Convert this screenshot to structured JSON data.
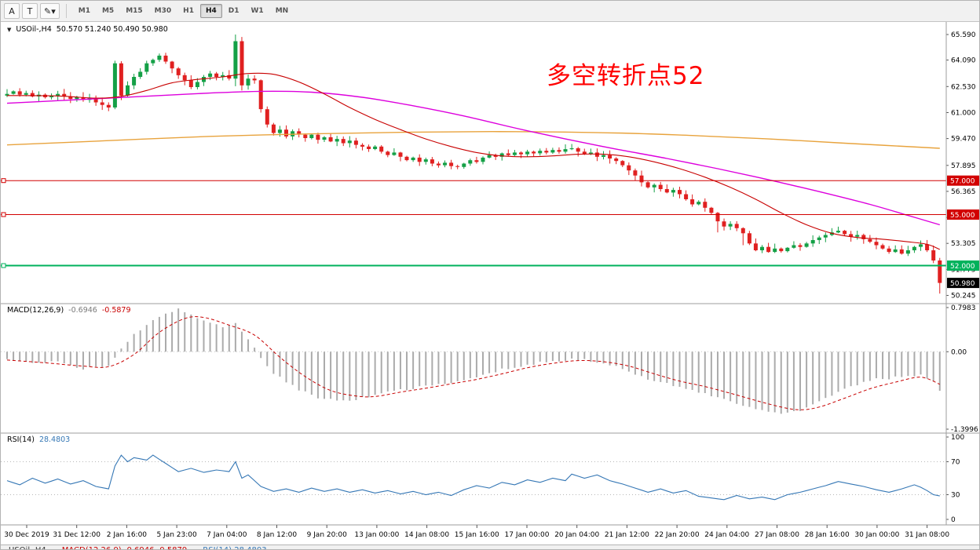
{
  "toolbar": {
    "tools": [
      {
        "name": "cursor-tool",
        "label": "A"
      },
      {
        "name": "text-tool",
        "label": "T"
      },
      {
        "name": "draw-tool",
        "label": "✎▾"
      }
    ],
    "timeframes": [
      "M1",
      "M5",
      "M15",
      "M30",
      "H1",
      "H4",
      "D1",
      "W1",
      "MN"
    ],
    "active_timeframe": "H4"
  },
  "chart": {
    "symbol": "USOil-,H4",
    "ohlc_text": "50.570 51.240 50.490 50.980",
    "collapse_icon": "▼",
    "annotation": "多空转折点52",
    "annotation_color": "#ff0000",
    "price_ticks": [
      65.59,
      64.09,
      62.53,
      61.0,
      59.47,
      57.895,
      56.365,
      54.835,
      53.305,
      51.775,
      50.245
    ],
    "hlines": [
      {
        "price": 57.0,
        "label": "57.000",
        "color": "#d20000",
        "width": 1
      },
      {
        "price": 55.0,
        "label": "55.000",
        "color": "#d20000",
        "width": 1
      },
      {
        "price": 52.0,
        "label": "52.000",
        "color": "#00b25c",
        "width": 2
      }
    ],
    "current_price": {
      "value": 50.98,
      "label": "50.980"
    },
    "time_labels": [
      "30 Dec 2019",
      "31 Dec 12:00",
      "2 Jan 16:00",
      "5 Jan 23:00",
      "7 Jan 04:00",
      "8 Jan 12:00",
      "9 Jan 20:00",
      "13 Jan 00:00",
      "14 Jan 08:00",
      "15 Jan 16:00",
      "17 Jan 00:00",
      "20 Jan 04:00",
      "21 Jan 12:00",
      "22 Jan 20:00",
      "24 Jan 04:00",
      "27 Jan 08:00",
      "28 Jan 16:00",
      "30 Jan 00:00",
      "31 Jan 08:00"
    ],
    "colors": {
      "candle_up": "#14a046",
      "candle_down": "#e02020",
      "ma_red": "#c80000",
      "ma_magenta": "#dd00dd",
      "ma_orange": "#e8a33d",
      "macd_hist": "#ababab",
      "macd_signal": "#c80000",
      "rsi": "#3577b5",
      "hline_red": "#d20000",
      "hline_green": "#00b25c"
    }
  },
  "macd": {
    "name": "MACD(12,26,9)",
    "main_value": "-0.6946",
    "signal_value": "-0.5879",
    "axis": [
      {
        "value": 0.7983,
        "label": "0.7983"
      },
      {
        "value": 0,
        "label": "0.00"
      },
      {
        "value": -1.3996,
        "label": "-1.3996"
      }
    ]
  },
  "rsi": {
    "name": "RSI(14)",
    "value": "28.4803",
    "levels": [
      70,
      30
    ],
    "axis": [
      {
        "value": 100,
        "label": "100"
      },
      {
        "value": 70,
        "label": "70"
      },
      {
        "value": 30,
        "label": "30"
      },
      {
        "value": 0,
        "label": "0"
      }
    ]
  },
  "bottom_bar": {
    "segments": [
      {
        "text": "USOil-,H4",
        "color": "#333333"
      },
      {
        "text": "MACD(12,26,9) -0.6946 -0.5879",
        "color": "#c80000"
      },
      {
        "text": "RSI(14) 28.4803",
        "color": "#3577b5"
      }
    ]
  },
  "chart_data": {
    "type": "candlestick",
    "symbol": "USOil",
    "timeframe": "H4",
    "price_axis_range": [
      49.9,
      66.1
    ],
    "macd_axis_range": [
      -1.3996,
      0.7983
    ],
    "rsi_axis_range": [
      0,
      100
    ],
    "first_open": 62.0,
    "closes": [
      62.1,
      62.25,
      62.05,
      62.15,
      61.95,
      62.05,
      61.9,
      62.0,
      62.1,
      61.95,
      61.8,
      61.9,
      61.75,
      61.85,
      61.6,
      61.45,
      61.3,
      63.9,
      62.0,
      62.6,
      63.1,
      63.4,
      63.9,
      64.1,
      64.35,
      64.0,
      63.6,
      63.2,
      62.9,
      62.5,
      62.8,
      63.1,
      63.3,
      63.1,
      63.2,
      63.0,
      65.2,
      62.6,
      63.0,
      62.9,
      61.2,
      60.3,
      59.8,
      60.0,
      59.6,
      59.9,
      59.7,
      59.5,
      59.7,
      59.4,
      59.55,
      59.3,
      59.45,
      59.2,
      59.35,
      59.1,
      59.0,
      58.85,
      59.0,
      58.7,
      58.5,
      58.65,
      58.4,
      58.2,
      58.35,
      58.1,
      58.25,
      58.0,
      57.9,
      58.05,
      57.85,
      57.8,
      58.0,
      58.2,
      58.1,
      58.35,
      58.5,
      58.4,
      58.6,
      58.5,
      58.65,
      58.55,
      58.7,
      58.6,
      58.75,
      58.65,
      58.8,
      58.7,
      58.85,
      58.9,
      58.7,
      58.55,
      58.65,
      58.4,
      58.5,
      58.3,
      58.15,
      57.9,
      57.6,
      57.3,
      56.9,
      56.6,
      56.75,
      56.5,
      56.3,
      56.45,
      56.2,
      55.9,
      55.6,
      55.75,
      55.4,
      55.1,
      54.6,
      54.3,
      54.45,
      54.2,
      53.9,
      53.3,
      52.9,
      53.1,
      52.8,
      53.0,
      52.85,
      53.05,
      53.2,
      53.1,
      53.3,
      53.5,
      53.65,
      53.8,
      53.95,
      54.05,
      53.85,
      53.7,
      53.8,
      53.55,
      53.4,
      53.2,
      53.0,
      52.8,
      52.95,
      52.7,
      52.9,
      53.1,
      53.25,
      52.9,
      52.3,
      50.98
    ],
    "wick_overrides": {
      "17": [
        64.05,
        61.2
      ],
      "36": [
        65.59,
        62.55
      ],
      "37": [
        65.45,
        62.3
      ],
      "40": [
        62.95,
        61.0
      ],
      "112": [
        55.15,
        53.95
      ],
      "116": [
        54.25,
        53.2
      ],
      "147": [
        52.45,
        50.35
      ]
    },
    "ma_red": [
      [
        0,
        62.0
      ],
      [
        8,
        61.98
      ],
      [
        14,
        61.85
      ],
      [
        18,
        61.95
      ],
      [
        22,
        62.3
      ],
      [
        26,
        62.75
      ],
      [
        30,
        62.95
      ],
      [
        34,
        63.1
      ],
      [
        38,
        63.3
      ],
      [
        42,
        63.25
      ],
      [
        46,
        62.8
      ],
      [
        50,
        62.1
      ],
      [
        54,
        61.3
      ],
      [
        58,
        60.6
      ],
      [
        62,
        60.0
      ],
      [
        66,
        59.45
      ],
      [
        70,
        59.0
      ],
      [
        74,
        58.65
      ],
      [
        78,
        58.45
      ],
      [
        82,
        58.4
      ],
      [
        86,
        58.45
      ],
      [
        90,
        58.55
      ],
      [
        94,
        58.55
      ],
      [
        98,
        58.4
      ],
      [
        102,
        58.1
      ],
      [
        106,
        57.7
      ],
      [
        110,
        57.2
      ],
      [
        114,
        56.6
      ],
      [
        118,
        55.9
      ],
      [
        122,
        55.1
      ],
      [
        126,
        54.4
      ],
      [
        130,
        53.9
      ],
      [
        134,
        53.65
      ],
      [
        138,
        53.55
      ],
      [
        142,
        53.4
      ],
      [
        145,
        53.25
      ],
      [
        147,
        52.95
      ]
    ],
    "ma_magenta": [
      [
        0,
        61.55
      ],
      [
        8,
        61.7
      ],
      [
        16,
        61.85
      ],
      [
        24,
        62.0
      ],
      [
        32,
        62.15
      ],
      [
        40,
        62.25
      ],
      [
        48,
        62.2
      ],
      [
        56,
        61.9
      ],
      [
        64,
        61.4
      ],
      [
        72,
        60.8
      ],
      [
        80,
        60.1
      ],
      [
        88,
        59.45
      ],
      [
        96,
        58.85
      ],
      [
        104,
        58.3
      ],
      [
        112,
        57.7
      ],
      [
        120,
        57.05
      ],
      [
        128,
        56.35
      ],
      [
        136,
        55.6
      ],
      [
        142,
        54.95
      ],
      [
        147,
        54.4
      ]
    ],
    "ma_orange": [
      [
        0,
        59.1
      ],
      [
        16,
        59.35
      ],
      [
        32,
        59.6
      ],
      [
        48,
        59.75
      ],
      [
        64,
        59.85
      ],
      [
        80,
        59.88
      ],
      [
        96,
        59.8
      ],
      [
        108,
        59.65
      ],
      [
        120,
        59.45
      ],
      [
        132,
        59.2
      ],
      [
        147,
        58.9
      ]
    ],
    "macd_main": [
      [
        0,
        -0.12
      ],
      [
        4,
        -0.22
      ],
      [
        8,
        -0.18
      ],
      [
        12,
        -0.3
      ],
      [
        16,
        -0.25
      ],
      [
        18,
        0.05
      ],
      [
        20,
        0.3
      ],
      [
        24,
        0.65
      ],
      [
        27,
        0.76
      ],
      [
        30,
        0.6
      ],
      [
        34,
        0.44
      ],
      [
        36,
        0.52
      ],
      [
        38,
        0.2
      ],
      [
        42,
        -0.4
      ],
      [
        46,
        -0.7
      ],
      [
        50,
        -0.86
      ],
      [
        54,
        -0.9
      ],
      [
        58,
        -0.78
      ],
      [
        62,
        -0.7
      ],
      [
        66,
        -0.62
      ],
      [
        70,
        -0.56
      ],
      [
        74,
        -0.46
      ],
      [
        78,
        -0.32
      ],
      [
        82,
        -0.23
      ],
      [
        86,
        -0.16
      ],
      [
        89,
        -0.13
      ],
      [
        93,
        -0.18
      ],
      [
        97,
        -0.3
      ],
      [
        101,
        -0.5
      ],
      [
        105,
        -0.6
      ],
      [
        109,
        -0.72
      ],
      [
        113,
        -0.86
      ],
      [
        117,
        -1.0
      ],
      [
        121,
        -1.12
      ],
      [
        125,
        -1.05
      ],
      [
        129,
        -0.85
      ],
      [
        133,
        -0.62
      ],
      [
        137,
        -0.5
      ],
      [
        141,
        -0.45
      ],
      [
        144,
        -0.42
      ],
      [
        146,
        -0.55
      ],
      [
        147,
        -0.6946
      ]
    ],
    "macd_signal": [
      [
        0,
        -0.15
      ],
      [
        6,
        -0.2
      ],
      [
        12,
        -0.26
      ],
      [
        16,
        -0.27
      ],
      [
        20,
        -0.05
      ],
      [
        24,
        0.35
      ],
      [
        28,
        0.6
      ],
      [
        31,
        0.62
      ],
      [
        35,
        0.48
      ],
      [
        39,
        0.3
      ],
      [
        43,
        -0.1
      ],
      [
        47,
        -0.45
      ],
      [
        51,
        -0.7
      ],
      [
        55,
        -0.8
      ],
      [
        58,
        -0.81
      ],
      [
        62,
        -0.73
      ],
      [
        66,
        -0.66
      ],
      [
        70,
        -0.58
      ],
      [
        74,
        -0.5
      ],
      [
        78,
        -0.4
      ],
      [
        82,
        -0.29
      ],
      [
        86,
        -0.21
      ],
      [
        90,
        -0.16
      ],
      [
        94,
        -0.18
      ],
      [
        98,
        -0.26
      ],
      [
        102,
        -0.4
      ],
      [
        106,
        -0.53
      ],
      [
        110,
        -0.63
      ],
      [
        114,
        -0.75
      ],
      [
        118,
        -0.88
      ],
      [
        122,
        -1.0
      ],
      [
        125,
        -1.05
      ],
      [
        128,
        -1.0
      ],
      [
        132,
        -0.84
      ],
      [
        136,
        -0.67
      ],
      [
        140,
        -0.55
      ],
      [
        144,
        -0.46
      ],
      [
        147,
        -0.5879
      ]
    ],
    "rsi": [
      [
        0,
        47
      ],
      [
        2,
        42
      ],
      [
        4,
        50
      ],
      [
        6,
        44
      ],
      [
        8,
        49
      ],
      [
        10,
        43
      ],
      [
        12,
        47
      ],
      [
        14,
        40
      ],
      [
        16,
        37
      ],
      [
        17,
        65
      ],
      [
        18,
        78
      ],
      [
        19,
        70
      ],
      [
        20,
        75
      ],
      [
        22,
        72
      ],
      [
        23,
        78
      ],
      [
        25,
        68
      ],
      [
        27,
        58
      ],
      [
        29,
        62
      ],
      [
        31,
        57
      ],
      [
        33,
        60
      ],
      [
        35,
        58
      ],
      [
        36,
        70
      ],
      [
        37,
        50
      ],
      [
        38,
        54
      ],
      [
        40,
        40
      ],
      [
        42,
        34
      ],
      [
        44,
        37
      ],
      [
        46,
        33
      ],
      [
        48,
        38
      ],
      [
        50,
        34
      ],
      [
        52,
        37
      ],
      [
        54,
        33
      ],
      [
        56,
        36
      ],
      [
        58,
        32
      ],
      [
        60,
        35
      ],
      [
        62,
        31
      ],
      [
        64,
        34
      ],
      [
        66,
        30
      ],
      [
        68,
        33
      ],
      [
        70,
        29
      ],
      [
        72,
        36
      ],
      [
        74,
        41
      ],
      [
        76,
        38
      ],
      [
        78,
        45
      ],
      [
        80,
        42
      ],
      [
        82,
        48
      ],
      [
        84,
        45
      ],
      [
        86,
        50
      ],
      [
        88,
        47
      ],
      [
        89,
        55
      ],
      [
        91,
        50
      ],
      [
        93,
        54
      ],
      [
        95,
        47
      ],
      [
        97,
        43
      ],
      [
        99,
        38
      ],
      [
        101,
        33
      ],
      [
        103,
        37
      ],
      [
        105,
        32
      ],
      [
        107,
        35
      ],
      [
        109,
        28
      ],
      [
        111,
        26
      ],
      [
        113,
        24
      ],
      [
        115,
        29
      ],
      [
        117,
        25
      ],
      [
        119,
        27
      ],
      [
        121,
        24
      ],
      [
        123,
        30
      ],
      [
        125,
        33
      ],
      [
        127,
        37
      ],
      [
        129,
        41
      ],
      [
        131,
        46
      ],
      [
        133,
        43
      ],
      [
        135,
        40
      ],
      [
        137,
        36
      ],
      [
        139,
        33
      ],
      [
        141,
        37
      ],
      [
        143,
        42
      ],
      [
        144,
        39
      ],
      [
        145,
        35
      ],
      [
        146,
        30
      ],
      [
        147,
        28.48
      ]
    ]
  }
}
